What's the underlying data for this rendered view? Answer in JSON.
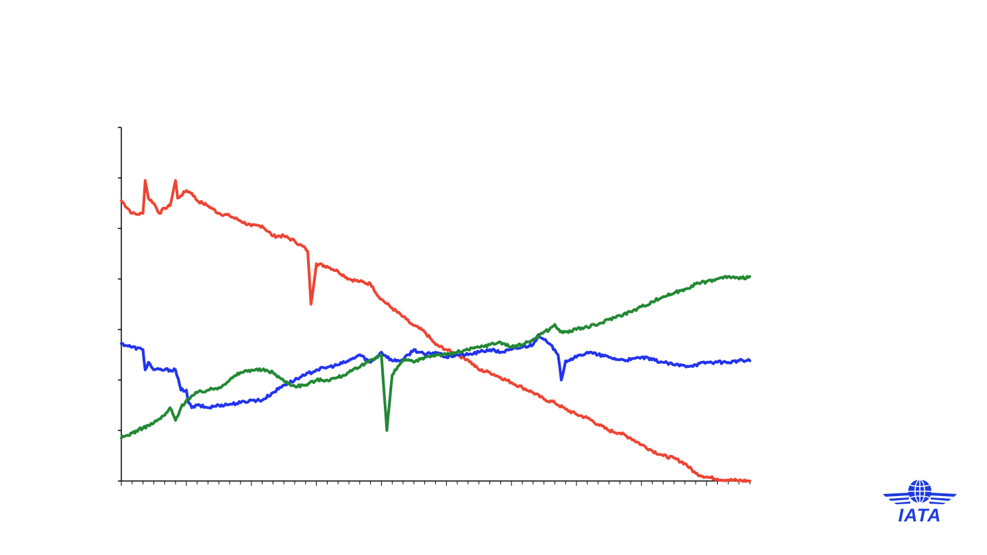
{
  "chart_data": {
    "type": "line",
    "title": "",
    "xlabel": "",
    "ylabel": "",
    "ylim": [
      0,
      7
    ],
    "y_ticks": [
      0,
      1,
      2,
      3,
      4,
      5,
      6,
      7
    ],
    "x_range": [
      0,
      58
    ],
    "x_minor_ticks": 58,
    "x_major_ticks": [
      6,
      12,
      18,
      24,
      30,
      36,
      42,
      48,
      54
    ],
    "grid": false,
    "legend": "none",
    "series": [
      {
        "color": "#ee4433",
        "x": [
          0,
          1,
          1.5,
          2,
          2.2,
          2.5,
          3,
          3.5,
          4,
          4.5,
          5,
          5.2,
          5.5,
          6,
          6.5,
          7,
          7.5,
          8,
          9,
          10,
          11,
          12,
          13,
          14,
          15,
          16,
          17,
          17.2,
          17.5,
          18,
          19,
          20,
          21,
          22,
          23,
          23.2,
          23.5,
          24,
          25,
          26,
          26.3,
          26.7,
          27,
          28,
          29,
          30,
          31,
          32,
          33,
          34,
          35,
          36,
          37,
          38,
          39,
          40,
          41,
          42,
          43,
          44,
          45,
          46,
          47,
          48,
          49,
          50,
          51,
          52,
          53,
          54,
          55,
          56,
          57,
          58
        ],
        "values": [
          5.55,
          5.3,
          5.28,
          5.3,
          5.95,
          5.6,
          5.5,
          5.3,
          5.4,
          5.45,
          5.95,
          5.6,
          5.65,
          5.75,
          5.7,
          5.55,
          5.5,
          5.45,
          5.3,
          5.25,
          5.15,
          5.05,
          5.05,
          4.85,
          4.85,
          4.75,
          4.6,
          4.55,
          3.5,
          4.3,
          4.25,
          4.15,
          4.0,
          3.95,
          3.9,
          3.85,
          3.72,
          3.6,
          3.42,
          3.25,
          3.2,
          3.12,
          3.08,
          2.95,
          2.7,
          2.6,
          2.5,
          2.4,
          2.2,
          2.15,
          2.05,
          1.95,
          1.85,
          1.75,
          1.62,
          1.55,
          1.42,
          1.32,
          1.25,
          1.12,
          1.0,
          0.95,
          0.85,
          0.72,
          0.6,
          0.5,
          0.45,
          0.35,
          0.15,
          0.08,
          0.04,
          0.02,
          0.01,
          0.0
        ]
      },
      {
        "color": "#2233ee",
        "x": [
          0,
          1,
          2,
          2.2,
          2.5,
          3,
          4,
          5,
          5.5,
          6,
          6.2,
          6.5,
          7,
          8,
          9,
          10,
          11,
          12,
          13,
          14,
          15,
          16,
          17,
          18,
          19,
          20,
          21,
          22,
          23,
          24,
          25,
          26,
          27,
          28,
          29,
          30,
          31,
          32,
          33,
          34,
          35,
          36,
          37,
          38,
          38.5,
          39,
          40,
          40.3,
          40.6,
          41,
          42,
          43,
          44,
          45,
          46,
          47,
          48,
          49,
          50,
          51,
          52,
          53,
          54,
          55,
          56,
          57,
          58
        ],
        "values": [
          2.72,
          2.65,
          2.6,
          2.2,
          2.35,
          2.2,
          2.2,
          2.2,
          1.8,
          1.8,
          1.55,
          1.45,
          1.5,
          1.45,
          1.5,
          1.52,
          1.55,
          1.6,
          1.6,
          1.75,
          1.9,
          2.0,
          2.1,
          2.2,
          2.25,
          2.3,
          2.38,
          2.5,
          2.35,
          2.55,
          2.38,
          2.4,
          2.6,
          2.5,
          2.55,
          2.45,
          2.5,
          2.5,
          2.55,
          2.6,
          2.55,
          2.6,
          2.65,
          2.7,
          2.9,
          2.8,
          2.6,
          2.5,
          2.0,
          2.38,
          2.45,
          2.55,
          2.5,
          2.45,
          2.4,
          2.4,
          2.45,
          2.4,
          2.35,
          2.3,
          2.28,
          2.3,
          2.35,
          2.35,
          2.35,
          2.38,
          2.38
        ]
      },
      {
        "color": "#228833",
        "x": [
          0,
          1,
          2,
          3,
          4,
          4.5,
          5,
          5.5,
          6,
          7,
          8,
          9,
          10,
          11,
          12,
          13,
          14,
          15,
          16,
          17,
          18,
          19,
          20,
          21,
          22,
          23,
          23.5,
          24,
          24.5,
          25,
          26,
          27,
          28,
          29,
          30,
          31,
          32,
          33,
          34,
          35,
          36,
          37,
          38,
          39,
          39.5,
          40,
          40.5,
          41,
          42,
          43,
          44,
          45,
          46,
          47,
          48,
          49,
          50,
          51,
          52,
          53,
          54,
          55,
          56,
          57,
          58
        ],
        "values": [
          0.85,
          0.95,
          1.05,
          1.15,
          1.3,
          1.45,
          1.2,
          1.45,
          1.6,
          1.75,
          1.8,
          1.85,
          2.0,
          2.15,
          2.2,
          2.2,
          2.15,
          1.98,
          1.88,
          1.9,
          2.0,
          2.0,
          2.05,
          2.15,
          2.25,
          2.4,
          2.45,
          2.5,
          1.0,
          2.1,
          2.4,
          2.35,
          2.45,
          2.5,
          2.5,
          2.55,
          2.6,
          2.65,
          2.7,
          2.75,
          2.65,
          2.7,
          2.8,
          2.95,
          3.0,
          3.1,
          2.95,
          2.95,
          3.0,
          3.05,
          3.1,
          3.2,
          3.28,
          3.35,
          3.45,
          3.55,
          3.65,
          3.72,
          3.8,
          3.9,
          3.95,
          4.0,
          4.05,
          4.0,
          4.05
        ]
      }
    ]
  },
  "logo": {
    "text": "IATA",
    "color": "#1e3cdc"
  }
}
